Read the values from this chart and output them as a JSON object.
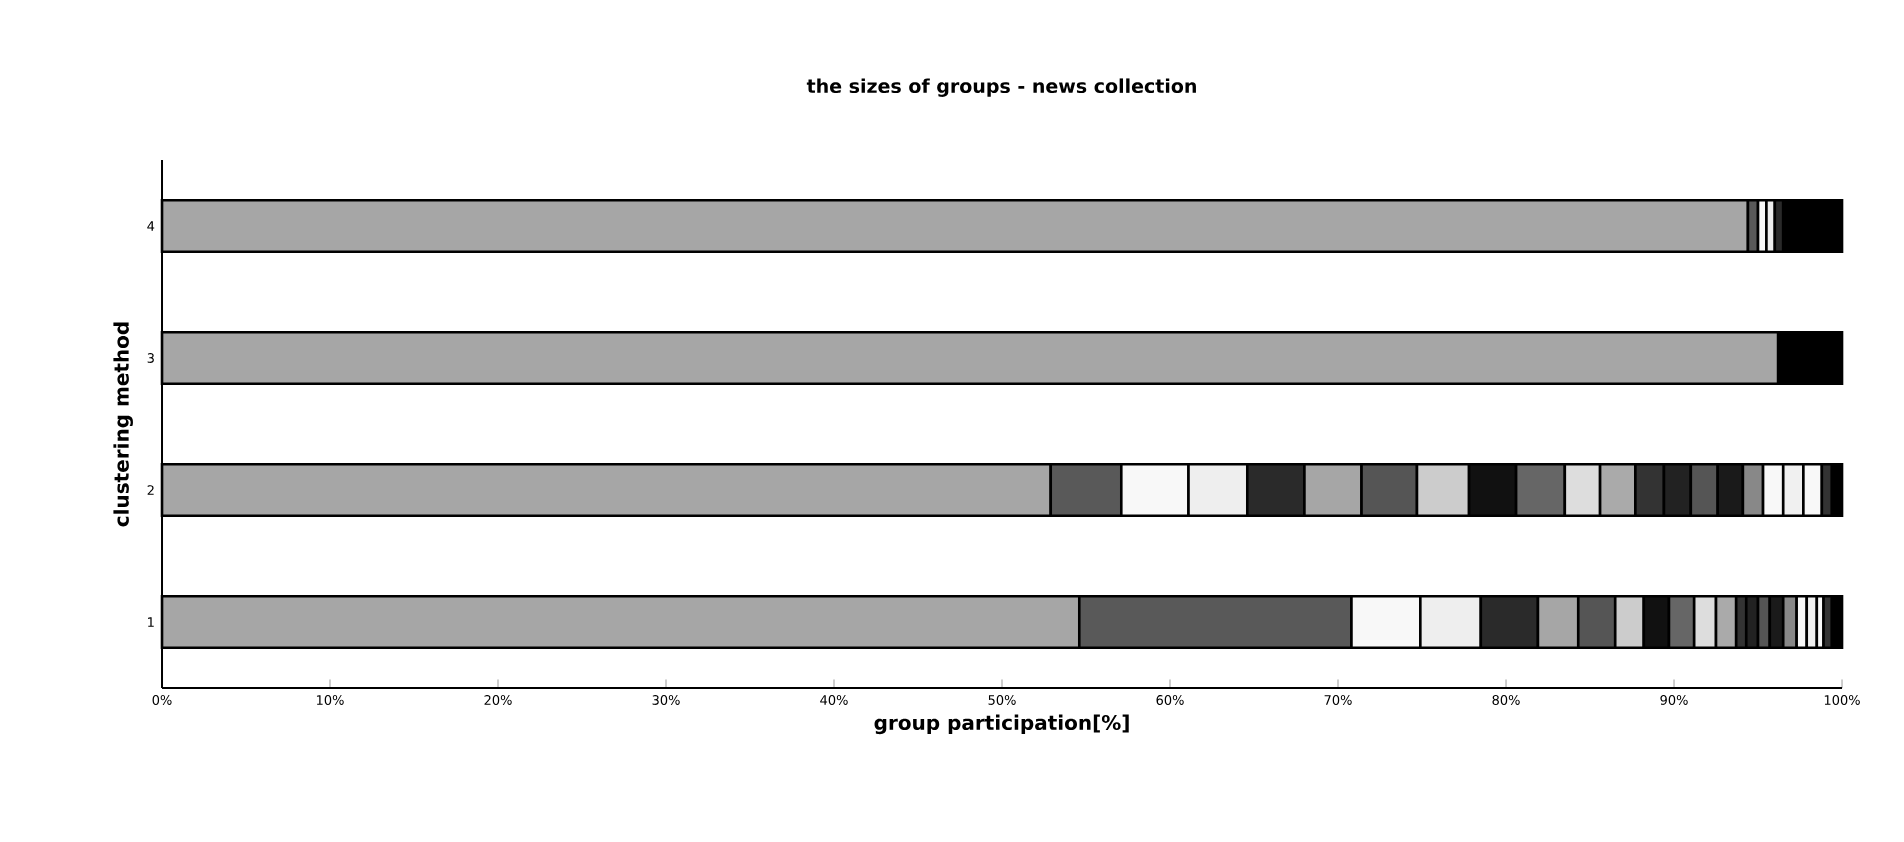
{
  "chart_data": {
    "type": "bar",
    "orientation": "horizontal",
    "stacked": true,
    "title": "the sizes of groups - news collection",
    "xlabel": "group participation[%]",
    "ylabel": "clustering method",
    "categories": [
      "4",
      "3",
      "2",
      "1"
    ],
    "xlim": [
      0,
      100
    ],
    "xticks": [
      {
        "value": 0,
        "label": "0%"
      },
      {
        "value": 10,
        "label": "10%"
      },
      {
        "value": 20,
        "label": "20%"
      },
      {
        "value": 30,
        "label": "30%"
      },
      {
        "value": 40,
        "label": "40%"
      },
      {
        "value": 50,
        "label": "50%"
      },
      {
        "value": 60,
        "label": "60%"
      },
      {
        "value": 70,
        "label": "70%"
      },
      {
        "value": 80,
        "label": "80%"
      },
      {
        "value": 90,
        "label": "90%"
      },
      {
        "value": 100,
        "label": "100%"
      }
    ],
    "series": [
      {
        "color": "#a6a6a6",
        "values": [
          94.4,
          96.2,
          52.9,
          54.6
        ]
      },
      {
        "color": "#595959",
        "values": [
          0.6,
          null,
          4.2,
          16.2
        ]
      },
      {
        "color": "#f8f8f8",
        "values": [
          0.5,
          null,
          4.0,
          4.1
        ]
      },
      {
        "color": "#eeeeee",
        "values": [
          0.5,
          null,
          3.5,
          3.6
        ]
      },
      {
        "color": "#2a2a2a",
        "values": [
          0.5,
          null,
          3.4,
          3.4
        ]
      },
      {
        "color": "#a6a6a6",
        "values": [
          null,
          null,
          3.4,
          2.4
        ]
      },
      {
        "color": "#555555",
        "values": [
          null,
          null,
          3.3,
          2.2
        ]
      },
      {
        "color": "#cccccc",
        "values": [
          null,
          null,
          3.1,
          1.7
        ]
      },
      {
        "color": "#111111",
        "values": [
          null,
          null,
          2.8,
          1.5
        ]
      },
      {
        "color": "#666666",
        "values": [
          null,
          null,
          2.9,
          1.5
        ]
      },
      {
        "color": "#dddddd",
        "values": [
          null,
          null,
          2.1,
          1.3
        ]
      },
      {
        "color": "#aaaaaa",
        "values": [
          null,
          null,
          2.1,
          1.2
        ]
      },
      {
        "color": "#333333",
        "values": [
          null,
          null,
          1.7,
          0.6
        ]
      },
      {
        "color": "#222222",
        "values": [
          null,
          null,
          1.6,
          0.7
        ]
      },
      {
        "color": "#555555",
        "values": [
          null,
          null,
          1.6,
          0.7
        ]
      },
      {
        "color": "#1a1a1a",
        "values": [
          null,
          null,
          1.5,
          0.8
        ]
      },
      {
        "color": "#888888",
        "values": [
          null,
          null,
          1.2,
          0.8
        ]
      },
      {
        "color": "#f8f8f8",
        "values": [
          null,
          null,
          1.2,
          0.6
        ]
      },
      {
        "color": "#f0f0f0",
        "values": [
          null,
          null,
          1.2,
          0.6
        ]
      },
      {
        "color": "#f8f8f8",
        "values": [
          null,
          null,
          1.1,
          0.4
        ]
      },
      {
        "color": "#333333",
        "values": [
          null,
          null,
          0.6,
          0.5
        ]
      },
      {
        "color": "#000000",
        "values": [
          3.5,
          3.8,
          0.6,
          0.6
        ]
      }
    ]
  }
}
